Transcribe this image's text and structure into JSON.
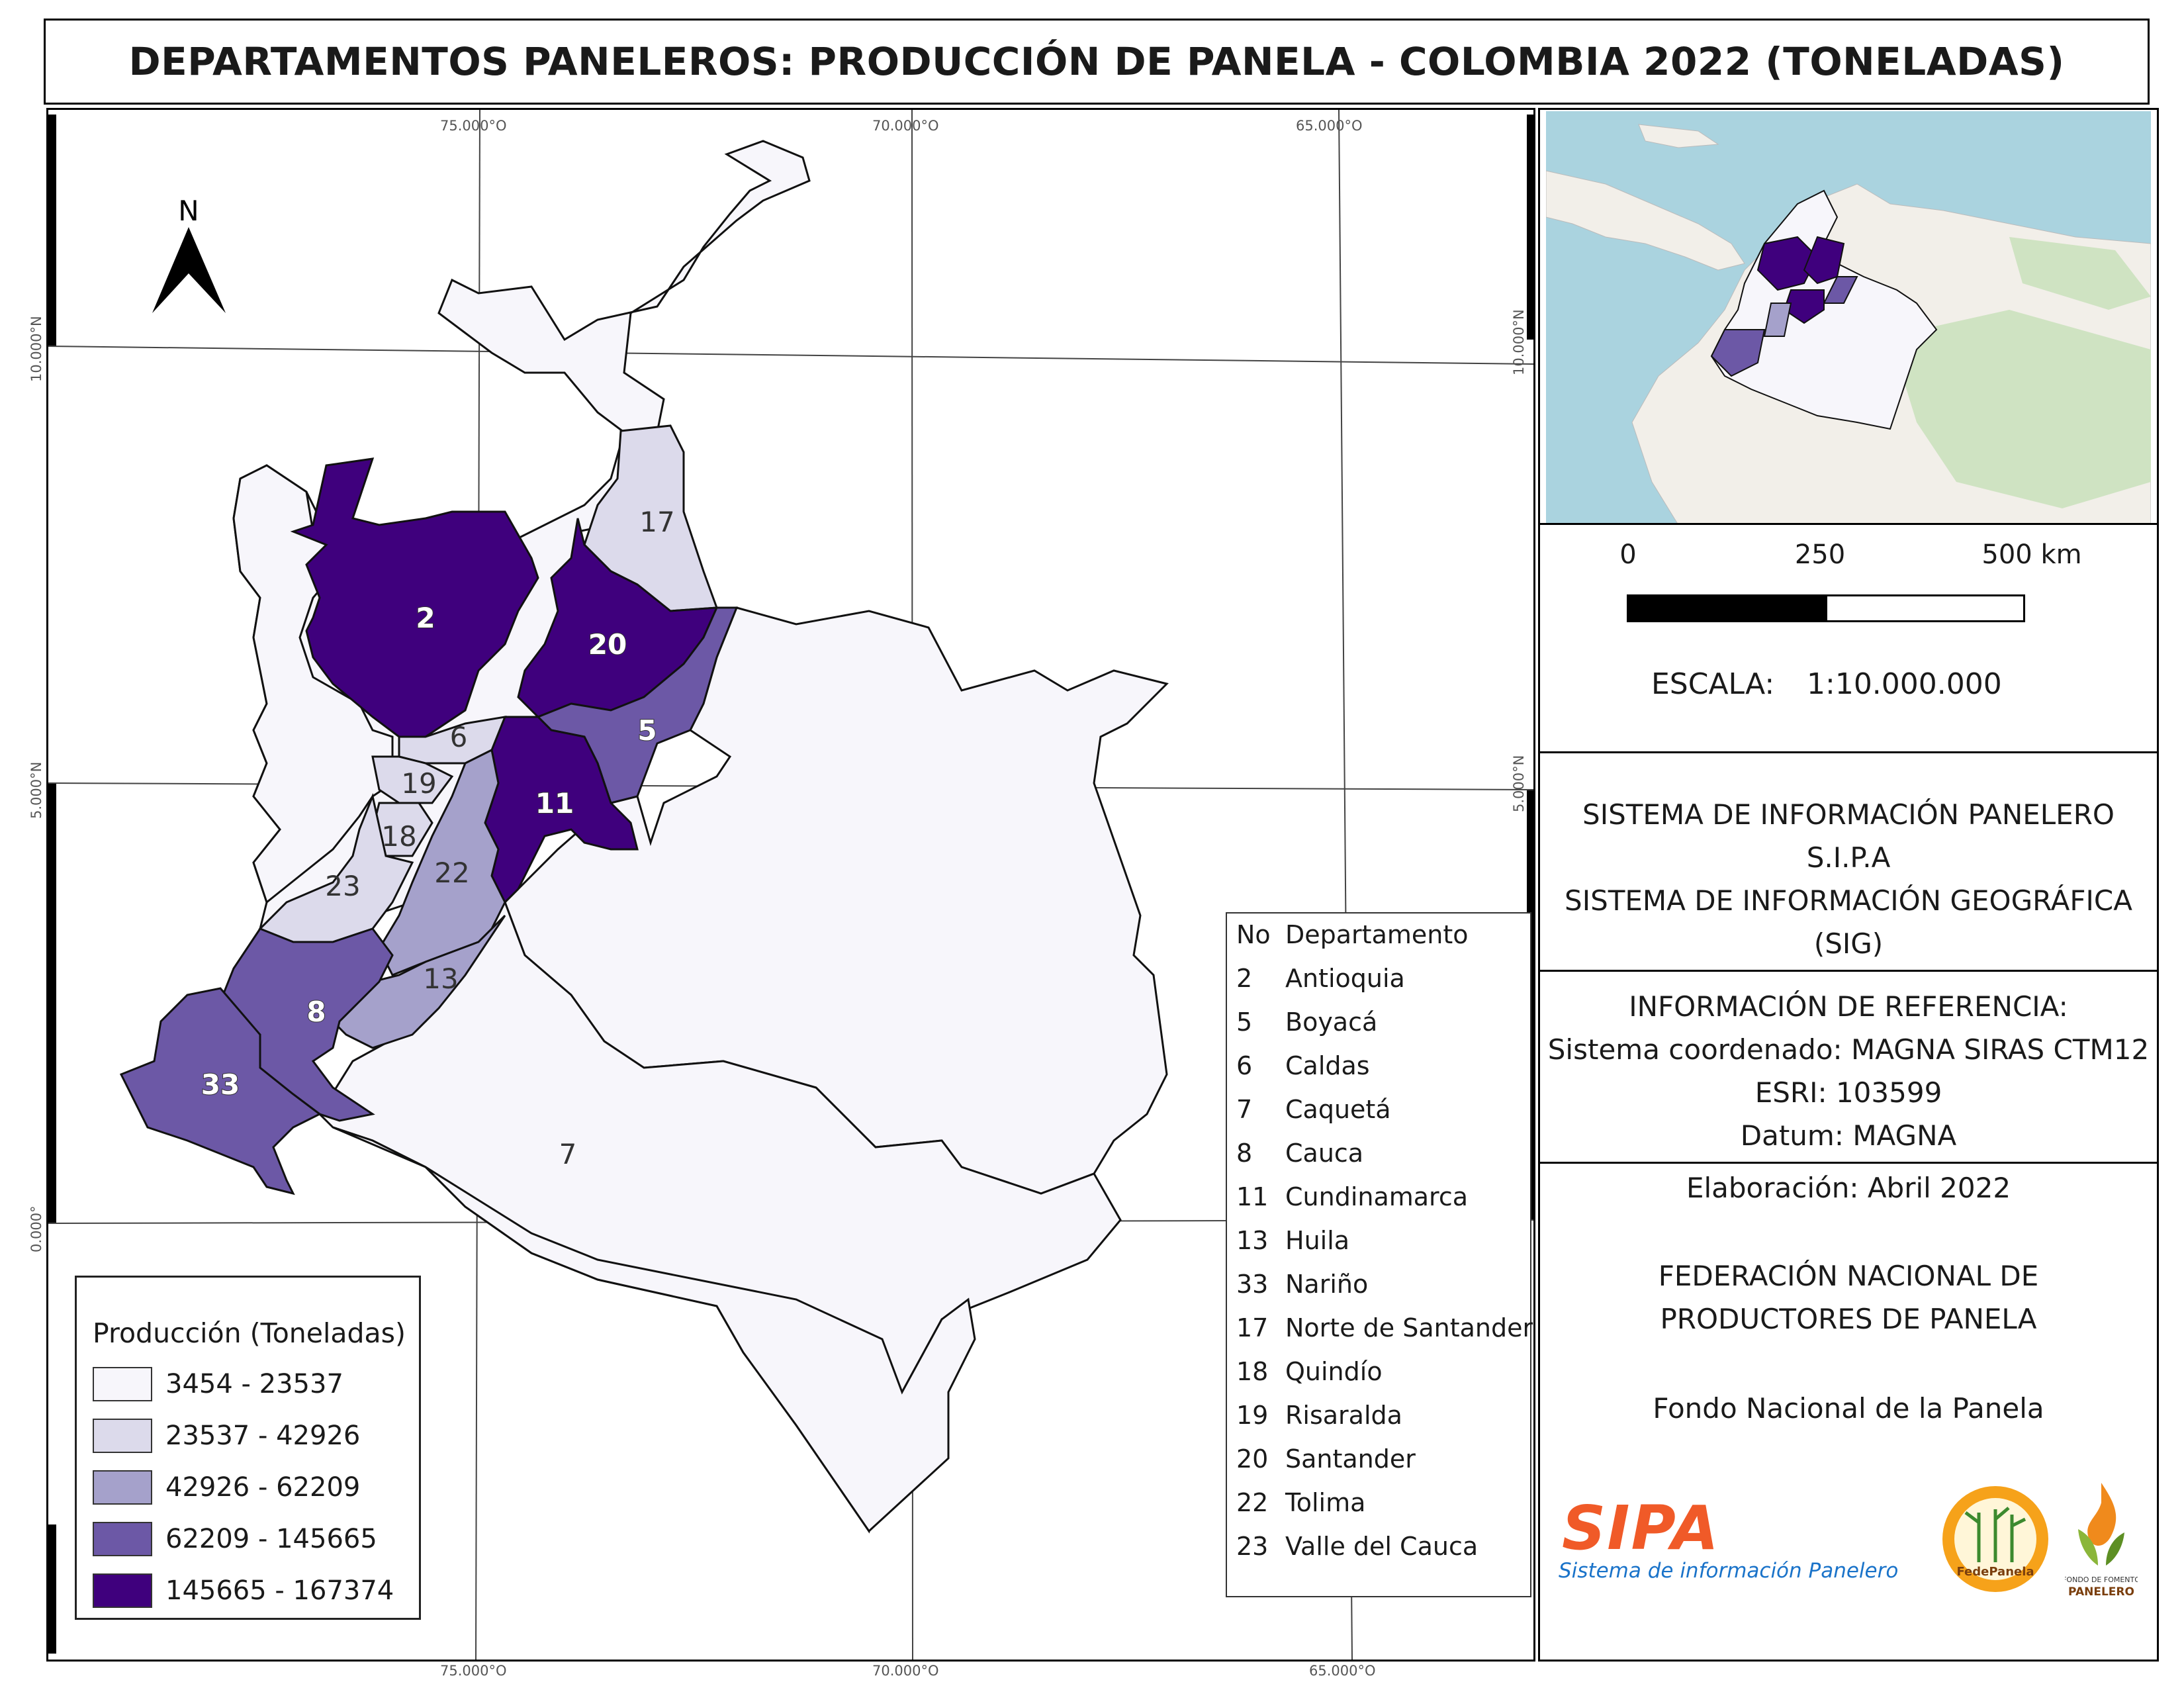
{
  "title": "DEPARTAMENTOS PANELEROS: PRODUCCIÓN DE PANELA - COLOMBIA 2022 (TONELADAS)",
  "graticule": {
    "lon_labels": [
      "75.000°O",
      "70.000°O",
      "65.000°O"
    ],
    "lat_labels": [
      "10.000°N",
      "5.000°N",
      "0.000°"
    ]
  },
  "north_arrow": {
    "label": "N"
  },
  "scale_bar": {
    "ticks": [
      "0",
      "250",
      "500 km"
    ],
    "scale_label": "ESCALA:",
    "scale_value": "1:10.000.000"
  },
  "info": {
    "system_lines": [
      "SISTEMA DE INFORMACIÓN PANELERO",
      "S.I.P.A",
      "SISTEMA DE INFORMACIÓN GEOGRÁFICA",
      "(SIG)"
    ],
    "reference_lines": [
      "INFORMACIÓN DE REFERENCIA:",
      "Sistema coordenado: MAGNA SIRAS CTM12",
      "ESRI: 103599",
      "Datum: MAGNA"
    ],
    "elaboration": "Elaboración: Abril 2022",
    "federation_lines": [
      "FEDERACIÓN NACIONAL DE",
      "PRODUCTORES DE PANELA"
    ],
    "fund": "Fondo Nacional de la Panela"
  },
  "logos": {
    "sipa_main": "SIPA",
    "sipa_sub": "Sistema de información Panelero",
    "fedepanela": "FedePanela",
    "fondo_line1": "FONDO DE FOMENTO",
    "fondo_line2": "PANELERO"
  },
  "legend": {
    "title": "Producción (Toneladas)",
    "classes": [
      {
        "range": "3454 - 23537",
        "color": "#f7f6fb"
      },
      {
        "range": "23537 - 42926",
        "color": "#dcdaeb"
      },
      {
        "range": "42926 - 62209",
        "color": "#a5a1cb"
      },
      {
        "range": "62209 - 145665",
        "color": "#6c58a6"
      },
      {
        "range": "145665 - 167374",
        "color": "#3f007d"
      }
    ]
  },
  "department_table": {
    "headers": [
      "No",
      "Departamento"
    ],
    "rows": [
      [
        "2",
        "Antioquia"
      ],
      [
        "5",
        "Boyacá"
      ],
      [
        "6",
        "Caldas"
      ],
      [
        "7",
        "Caquetá"
      ],
      [
        "8",
        "Cauca"
      ],
      [
        "11",
        "Cundinamarca"
      ],
      [
        "13",
        "Huila"
      ],
      [
        "33",
        "Nariño"
      ],
      [
        "17",
        "Norte de Santander"
      ],
      [
        "18",
        "Quindío"
      ],
      [
        "19",
        "Risaralda"
      ],
      [
        "20",
        "Santander"
      ],
      [
        "22",
        "Tolima"
      ],
      [
        "23",
        "Valle del Cauca"
      ]
    ]
  },
  "map_labels": {
    "antioquia": "2",
    "boyaca": "5",
    "caldas": "6",
    "caqueta": "7",
    "cauca": "8",
    "cundinamarca": "11",
    "huila": "13",
    "narino": "33",
    "norte_santander": "17",
    "quindio": "18",
    "risaralda": "19",
    "santander": "20",
    "tolima": "22",
    "valle": "23"
  }
}
